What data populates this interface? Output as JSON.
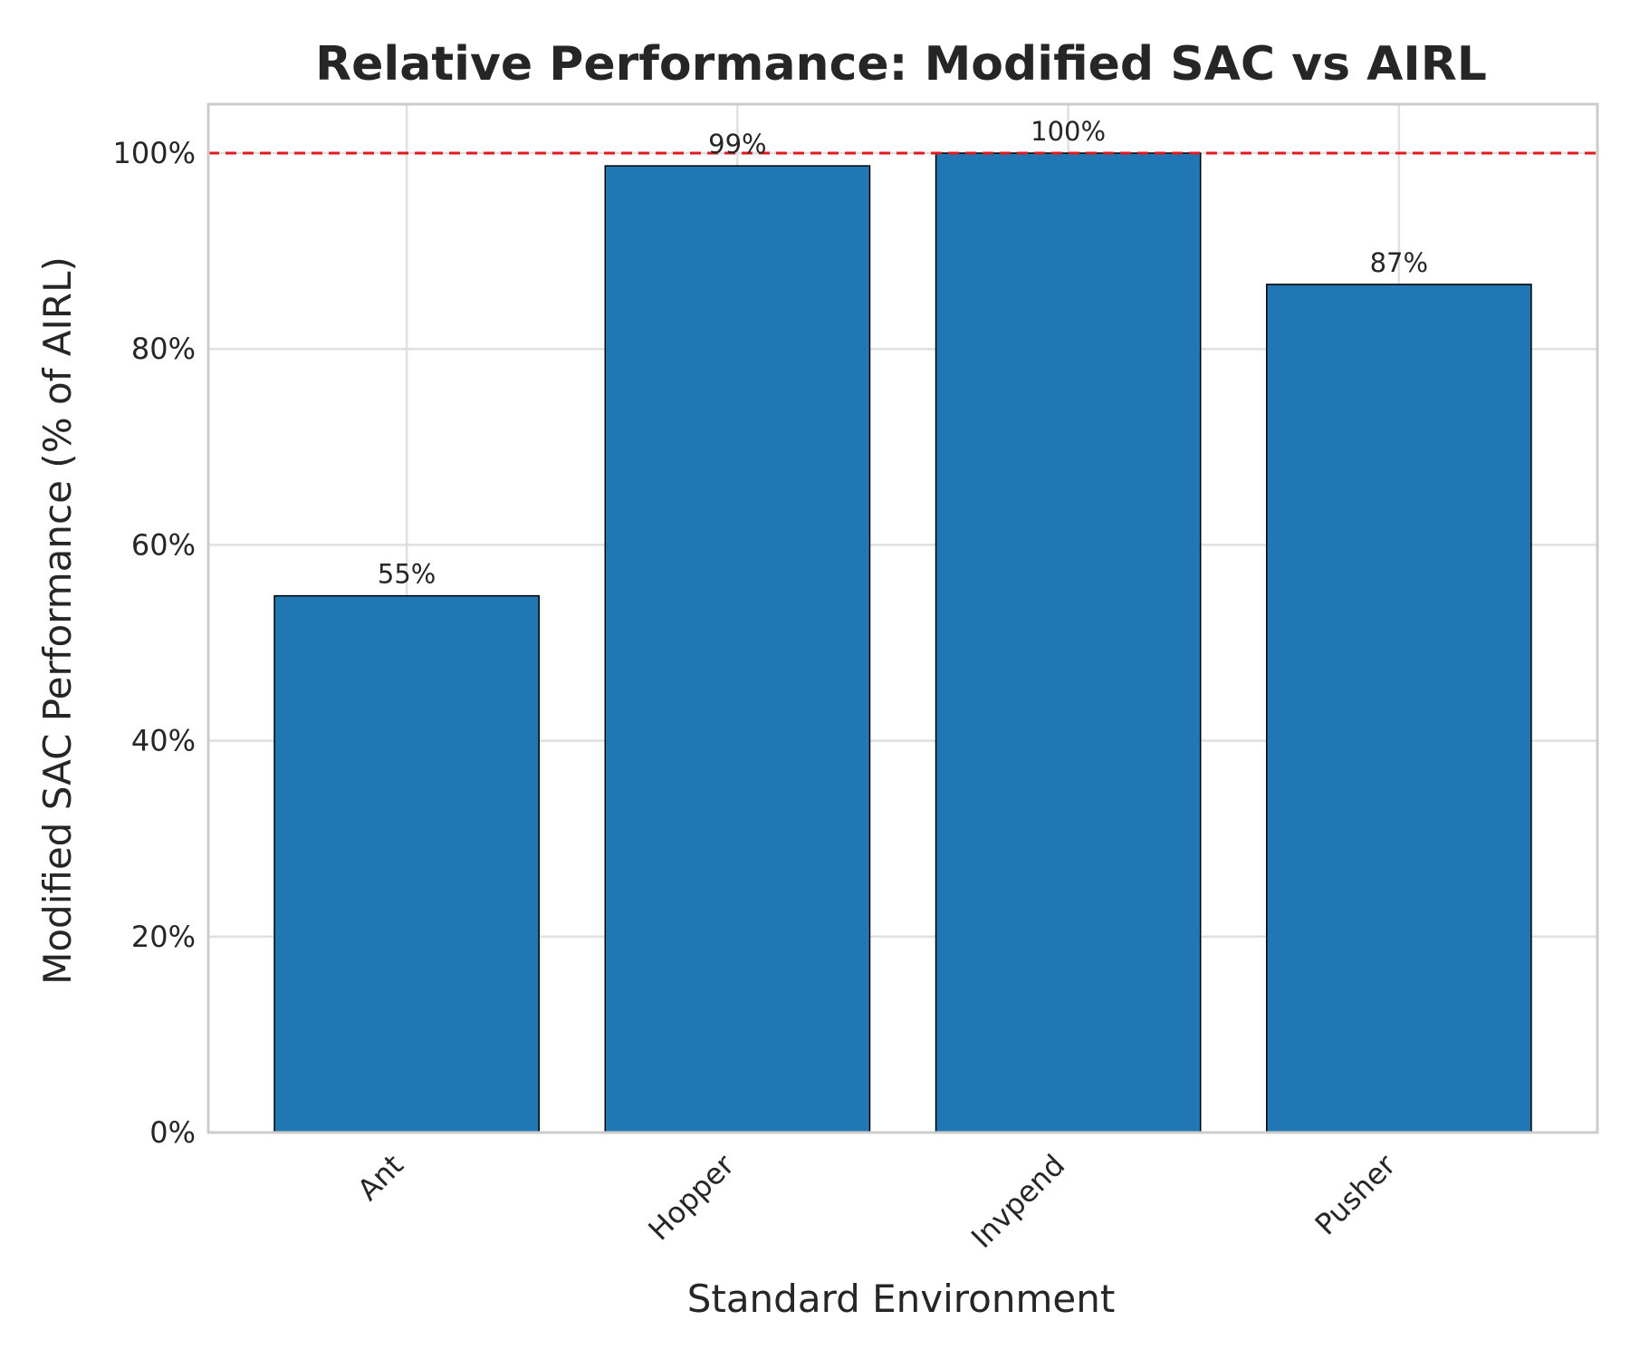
{
  "chart_data": {
    "type": "bar",
    "title": "Relative Performance: Modified SAC vs AIRL",
    "xlabel": "Standard Environment",
    "ylabel": "Modified SAC Performance (% of AIRL)",
    "categories": [
      "Ant",
      "Hopper",
      "Invpend",
      "Pusher"
    ],
    "values": [
      54.8,
      98.7,
      100.0,
      86.6
    ],
    "value_labels": [
      "55%",
      "99%",
      "100%",
      "87%"
    ],
    "ylim": [
      0,
      105
    ],
    "yticks": [
      0,
      20,
      40,
      60,
      80,
      100
    ],
    "ytick_labels": [
      "0%",
      "20%",
      "40%",
      "60%",
      "80%",
      "100%"
    ],
    "reference_line": {
      "value": 100,
      "style": "dashed",
      "color": "#e31a1c"
    },
    "bar_color": "#2077b4",
    "bar_edge_color": "#000000",
    "grid": true,
    "legend": false
  }
}
